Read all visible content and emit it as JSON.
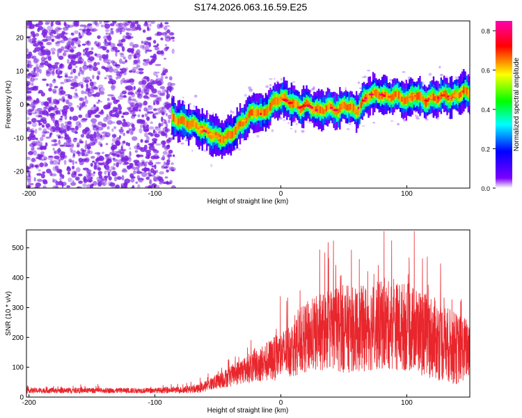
{
  "title": "S174.2026.063.16.59.E25",
  "chart_data": [
    {
      "type": "heatmap",
      "xlabel": "Height of straight line (km)",
      "ylabel": "Frequency (Hz)",
      "xlim": [
        -202,
        150
      ],
      "ylim": [
        -25,
        25
      ],
      "xticks": [
        -200,
        -100,
        0,
        100
      ],
      "yticks": [
        -20,
        -10,
        0,
        10,
        20
      ],
      "colorbar": {
        "label": "Normalized spectral amplitude",
        "range": [
          0.0,
          0.85
        ],
        "ticks": [
          "0.0",
          "0.2",
          "0.4",
          "0.6",
          "0.8"
        ],
        "colors": [
          "#ffffff",
          "#7b00ff",
          "#0000ff",
          "#00ffff",
          "#00ff00",
          "#ffff00",
          "#ff0000",
          "#ff00b0"
        ]
      },
      "noise_region_x": [
        -202,
        -85
      ],
      "ridge": {
        "x": [
          -87,
          -80,
          -70,
          -60,
          -50,
          -45,
          -40,
          -35,
          -30,
          -25,
          -20,
          -15,
          -10,
          -5,
          0,
          5,
          10,
          15,
          20,
          25,
          30,
          35,
          40,
          45,
          50,
          55,
          60,
          65,
          70,
          75,
          80,
          85,
          90,
          95,
          100,
          105,
          110,
          115,
          120,
          125,
          130,
          135,
          140,
          145,
          150
        ],
        "freq": [
          -4,
          -5,
          -6,
          -8,
          -10,
          -10,
          -9,
          -7,
          -5,
          -3,
          -2,
          -3,
          -1,
          1,
          2,
          1,
          0,
          -1,
          0,
          -1,
          -2,
          -1,
          -1,
          -2,
          0,
          -1,
          -2,
          1,
          3,
          3,
          3,
          2,
          3,
          2,
          1,
          3,
          2,
          1,
          2,
          2,
          3,
          2,
          3,
          4,
          3
        ]
      }
    },
    {
      "type": "line",
      "xlabel": "Height of straight line (km)",
      "ylabel": "SNR (10 * v/v)",
      "xlim": [
        -202,
        150
      ],
      "ylim": [
        0,
        560
      ],
      "xticks": [
        -200,
        -100,
        0,
        100
      ],
      "yticks": [
        0,
        100,
        200,
        300,
        400,
        500
      ],
      "line_color": "#e8262c",
      "series": [
        {
          "x": [
            -202,
            -180,
            -160,
            -140,
            -120,
            -100,
            -80,
            -65,
            -55,
            -40,
            -30,
            -20,
            -10,
            0,
            10,
            20,
            30,
            40,
            50,
            60,
            70,
            80,
            90,
            100,
            110,
            120,
            130,
            140,
            150
          ],
          "mean": [
            22,
            22,
            22,
            22,
            22,
            22,
            24,
            28,
            45,
            70,
            90,
            105,
            120,
            140,
            165,
            200,
            215,
            230,
            230,
            225,
            235,
            240,
            240,
            235,
            220,
            200,
            180,
            160,
            165
          ],
          "spread": [
            9,
            9,
            9,
            9,
            9,
            9,
            11,
            14,
            22,
            35,
            45,
            55,
            70,
            80,
            95,
            120,
            130,
            140,
            150,
            140,
            150,
            150,
            150,
            150,
            145,
            140,
            130,
            120,
            100
          ]
        }
      ]
    }
  ]
}
